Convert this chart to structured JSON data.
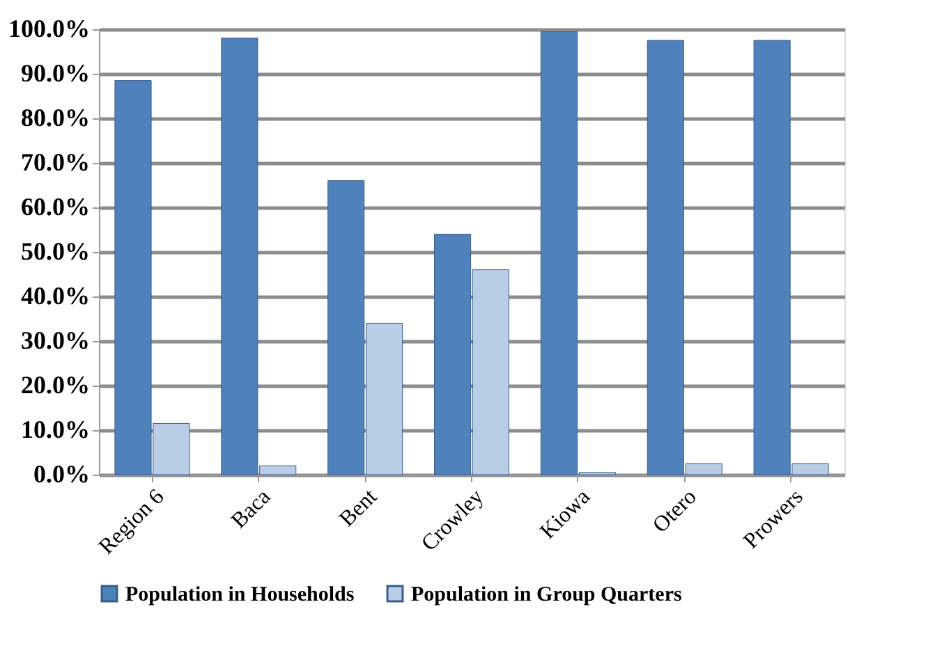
{
  "chart_data": {
    "type": "bar",
    "categories": [
      "Region 6",
      "Baca",
      "Bent",
      "Crowley",
      "Kiowa",
      "Otero",
      "Prowers"
    ],
    "series": [
      {
        "name": "Population in Households",
        "color": "#4f81bd",
        "values": [
          88.5,
          98,
          66,
          54,
          99.5,
          97.5,
          97.5
        ]
      },
      {
        "name": "Population in Group Quarters",
        "color": "#b9cde5",
        "values": [
          11.5,
          2,
          34,
          46,
          0.5,
          2.5,
          2.5
        ]
      }
    ],
    "ylim": [
      0,
      100
    ],
    "yticks": [
      {
        "value": 0,
        "label": "0.0%"
      },
      {
        "value": 10,
        "label": "10.0%"
      },
      {
        "value": 20,
        "label": "20.0%"
      },
      {
        "value": 30,
        "label": "30.0%"
      },
      {
        "value": 40,
        "label": "40.0%"
      },
      {
        "value": 50,
        "label": "50.0%"
      },
      {
        "value": 60,
        "label": "60.0%"
      },
      {
        "value": 70,
        "label": "70.0%"
      },
      {
        "value": 80,
        "label": "80.0%"
      },
      {
        "value": 90,
        "label": "90.0%"
      },
      {
        "value": 100,
        "label": "100.0%"
      }
    ],
    "grid": "y",
    "legend": "bottom"
  }
}
